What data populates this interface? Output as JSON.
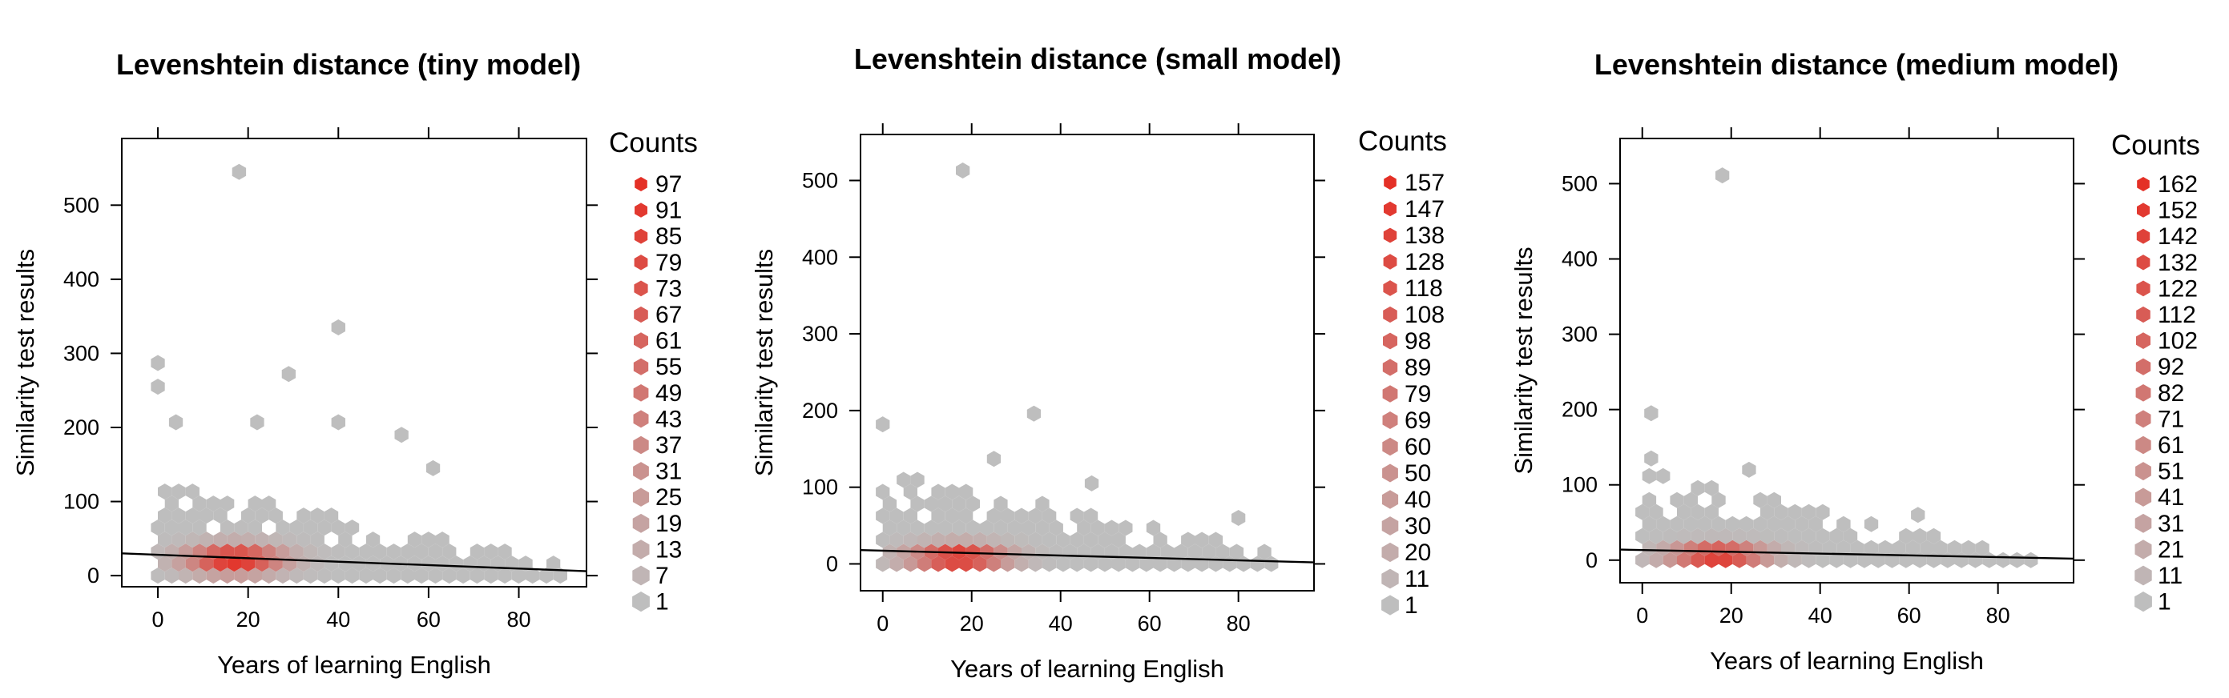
{
  "chart_data": [
    {
      "type": "hexbin",
      "title": "Levenshtein distance (tiny model)",
      "xlabel": "Years of learning English",
      "ylabel": "Similarity test results",
      "xlim": [
        -8,
        95
      ],
      "ylim": [
        -15,
        590
      ],
      "xticks": [
        0,
        20,
        40,
        60,
        80
      ],
      "yticks": [
        0,
        100,
        200,
        300,
        400,
        500
      ],
      "legend": {
        "title": "Counts",
        "placement": "right",
        "values": [
          97,
          91,
          85,
          79,
          73,
          67,
          61,
          55,
          49,
          43,
          37,
          31,
          25,
          19,
          13,
          7,
          1
        ]
      },
      "trendline": [
        [
          -8,
          30
        ],
        [
          95,
          6
        ]
      ],
      "outliers": [
        [
          18,
          545
        ],
        [
          40,
          335
        ],
        [
          0,
          287
        ],
        [
          29,
          272
        ],
        [
          0,
          255
        ],
        [
          54,
          190
        ],
        [
          40,
          207
        ],
        [
          22,
          207
        ],
        [
          4,
          207
        ],
        [
          61,
          145
        ]
      ],
      "band_max": 130,
      "band_decay": 1.3,
      "hot_center": [
        17,
        22
      ],
      "hot_spread": [
        10,
        18
      ]
    },
    {
      "type": "hexbin",
      "title": "Levenshtein distance (small model)",
      "xlabel": "Years of learning English",
      "ylabel": "Similarity test results",
      "xlim": [
        -5,
        97
      ],
      "ylim": [
        -35,
        560
      ],
      "xticks": [
        0,
        20,
        40,
        60,
        80
      ],
      "yticks": [
        0,
        100,
        200,
        300,
        400,
        500
      ],
      "legend": {
        "title": "Counts",
        "placement": "right",
        "values": [
          157,
          147,
          138,
          128,
          118,
          108,
          98,
          89,
          79,
          69,
          60,
          50,
          40,
          30,
          20,
          11,
          1
        ]
      },
      "trendline": [
        [
          -5,
          18
        ],
        [
          97,
          2
        ]
      ],
      "outliers": [
        [
          18,
          513
        ],
        [
          34,
          196
        ],
        [
          0,
          182
        ],
        [
          25,
          137
        ],
        [
          47,
          105
        ],
        [
          80,
          60
        ]
      ],
      "band_max": 120,
      "band_decay": 1.3,
      "hot_center": [
        17,
        8
      ],
      "hot_spread": [
        10,
        16
      ]
    },
    {
      "type": "hexbin",
      "title": "Levenshtein distance (medium model)",
      "xlabel": "Years of learning English",
      "ylabel": "Similarity test results",
      "xlim": [
        -5,
        97
      ],
      "ylim": [
        -30,
        560
      ],
      "xticks": [
        0,
        20,
        40,
        60,
        80
      ],
      "yticks": [
        0,
        100,
        200,
        300,
        400,
        500
      ],
      "legend": {
        "title": "Counts",
        "placement": "right",
        "values": [
          162,
          152,
          142,
          132,
          122,
          112,
          102,
          92,
          82,
          71,
          61,
          51,
          41,
          31,
          21,
          11,
          1
        ]
      },
      "trendline": [
        [
          -5,
          14
        ],
        [
          97,
          2
        ]
      ],
      "outliers": [
        [
          18,
          511
        ],
        [
          2,
          195
        ],
        [
          2,
          135
        ],
        [
          24,
          120
        ],
        [
          62,
          60
        ]
      ],
      "band_max": 120,
      "band_decay": 1.5,
      "hot_center": [
        17,
        6
      ],
      "hot_spread": [
        10,
        14
      ]
    }
  ]
}
